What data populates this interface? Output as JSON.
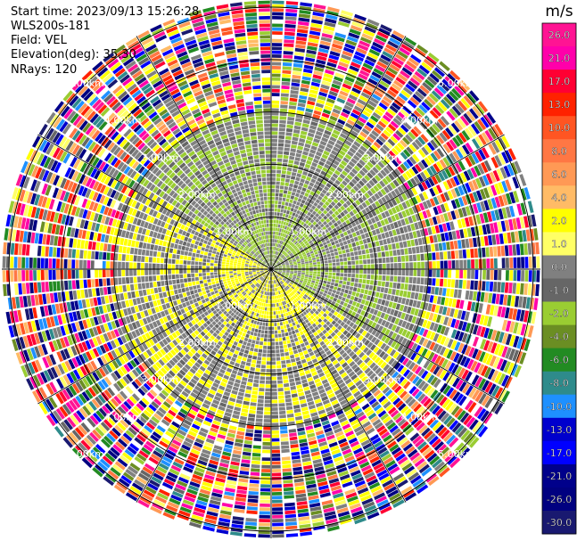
{
  "header": {
    "start_time": "Start time: 2023/09/13 15:26:28",
    "instrument": "WLS200s-181",
    "field": "Field: VEL",
    "elevation": "Elevation(deg): 35.30",
    "nrays": "NRays: 120"
  },
  "colorbar": {
    "unit": "m/s",
    "ticks": [
      "26.0",
      "21.0",
      "17.0",
      "13.0",
      "10.0",
      "8.0",
      "6.0",
      "4.0",
      "2.0",
      "1.0",
      "0.0",
      "-1.0",
      "-2.0",
      "-4.0",
      "-6.0",
      "-8.0",
      "-10.0",
      "-13.0",
      "-17.0",
      "-21.0",
      "-26.0",
      "-30.0"
    ],
    "colors": [
      "#ff1493",
      "#ff00aa",
      "#ff0033",
      "#ff2200",
      "#ff5522",
      "#ff7744",
      "#ff9955",
      "#ffbb66",
      "#ffff00",
      "#ffff66",
      "#808080",
      "#666666",
      "#9acd32",
      "#6b8e23",
      "#228b22",
      "#2e8b8b",
      "#1e90ff",
      "#0000cd",
      "#0000ff",
      "#00008b",
      "#000080",
      "#191970"
    ]
  },
  "chart_data": {
    "type": "ppi",
    "field": "VEL",
    "units": "m/s",
    "range_rings_km": [
      "1.00km",
      "2.00km",
      "3.00km",
      "4.00km",
      "5.00km"
    ],
    "ring_distances_km": [
      1,
      2,
      3,
      4,
      5
    ],
    "nrays": 120,
    "elevation_deg": 35.3,
    "value_range": [
      -30,
      26
    ]
  }
}
